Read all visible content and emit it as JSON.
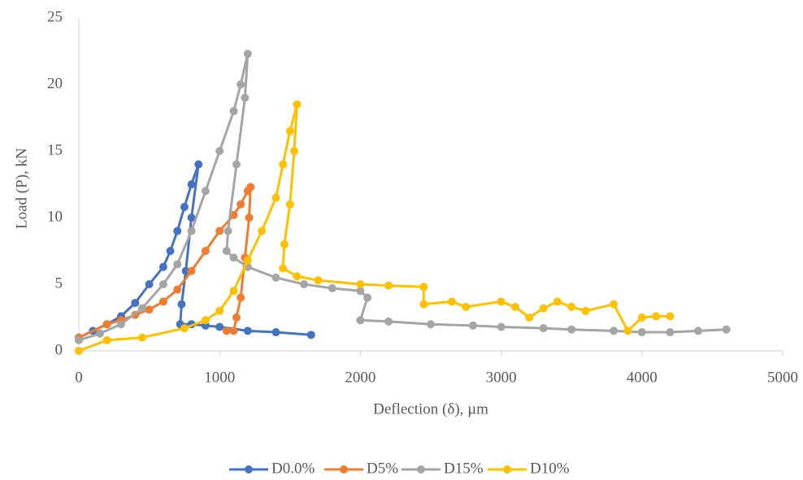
{
  "chart_data": {
    "type": "line",
    "x_label": "Deflection (δ), µm",
    "y_label": "Load (P), kN",
    "xlim": [
      0,
      5000
    ],
    "xticks": [
      0,
      1000,
      2000,
      3000,
      4000,
      5000
    ],
    "ylim": [
      0,
      25
    ],
    "yticks": [
      0,
      5,
      10,
      15,
      20,
      25
    ],
    "grid": false,
    "legend": "bottom",
    "series": [
      {
        "name": "D0.0%",
        "color": "#4472c4",
        "x": [
          0,
          100,
          200,
          300,
          400,
          500,
          600,
          650,
          700,
          750,
          800,
          850,
          800,
          760,
          730,
          720,
          800,
          900,
          1000,
          1200,
          1400,
          1650
        ],
        "values": [
          1,
          1.5,
          2,
          2.6,
          3.6,
          5,
          6.3,
          7.5,
          9,
          10.8,
          12.5,
          14,
          10,
          6,
          3.5,
          2,
          2,
          1.9,
          1.8,
          1.5,
          1.4,
          1.2
        ]
      },
      {
        "name": "D5%",
        "color": "#ed7d31",
        "x": [
          0,
          200,
          300,
          400,
          500,
          600,
          700,
          800,
          900,
          1000,
          1100,
          1150,
          1200,
          1220,
          1210,
          1180,
          1150,
          1120,
          1100,
          1050
        ],
        "values": [
          1,
          2,
          2.3,
          2.7,
          3.1,
          3.7,
          4.6,
          6,
          7.5,
          9,
          10.2,
          11,
          12,
          12.3,
          10,
          7,
          4,
          2.5,
          1.5,
          1.5
        ]
      },
      {
        "name": "D15%",
        "color": "#a5a5a5",
        "x": [
          0,
          150,
          300,
          450,
          600,
          700,
          800,
          900,
          1000,
          1100,
          1150,
          1200,
          1180,
          1120,
          1060,
          1050,
          1100,
          1200,
          1400,
          1600,
          1800,
          2000,
          2050,
          2000,
          2200,
          2500,
          2800,
          3000,
          3300,
          3500,
          3800,
          4000,
          4200,
          4400,
          4600
        ],
        "values": [
          0.8,
          1.3,
          2,
          3.2,
          5,
          6.5,
          9,
          12,
          15,
          18,
          20,
          22.3,
          19,
          14,
          9,
          7.5,
          7,
          6.3,
          5.5,
          5,
          4.7,
          4.5,
          4,
          2.3,
          2.2,
          2,
          1.9,
          1.8,
          1.7,
          1.6,
          1.5,
          1.4,
          1.4,
          1.5,
          1.6
        ]
      },
      {
        "name": "D10%",
        "color": "#ffc000",
        "x": [
          0,
          200,
          450,
          750,
          900,
          1000,
          1100,
          1200,
          1300,
          1400,
          1450,
          1500,
          1550,
          1530,
          1500,
          1460,
          1450,
          1550,
          1700,
          2000,
          2200,
          2450,
          2450,
          2650,
          2750,
          3000,
          3100,
          3200,
          3300,
          3400,
          3500,
          3600,
          3800,
          3900,
          4000,
          4100,
          4200
        ],
        "values": [
          0,
          0.8,
          1,
          1.7,
          2.3,
          3,
          4.5,
          6.8,
          9,
          11.5,
          14,
          16.5,
          18.5,
          15,
          11,
          8,
          6.2,
          5.6,
          5.3,
          5,
          4.9,
          4.8,
          3.5,
          3.7,
          3.3,
          3.7,
          3.3,
          2.5,
          3.2,
          3.7,
          3.3,
          3,
          3.5,
          1.5,
          2.5,
          2.6,
          2.6
        ]
      }
    ]
  }
}
